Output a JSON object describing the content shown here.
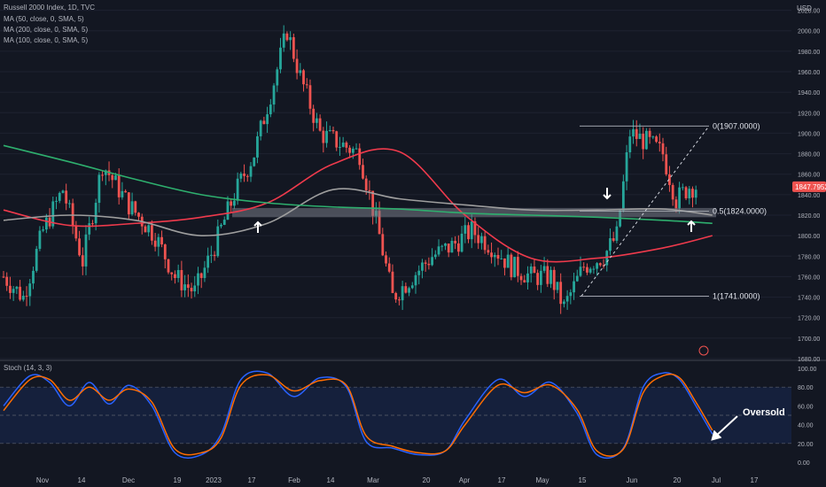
{
  "legend": {
    "title": "Russell 2000 Index, 1D, TVC",
    "ma_lines": [
      "MA (50, close, 0, SMA, 5)",
      "MA (200, close, 0, SMA, 5)",
      "MA (100, close, 0, SMA, 5)"
    ],
    "stoch_title": "Stoch (14, 3, 3)"
  },
  "currency": "USD",
  "price_label": "1847.7952",
  "colors": {
    "background": "#131722",
    "up": "#26a69a",
    "down": "#ef5350",
    "ma50": "#ef3a4c",
    "ma100": "#9e9e9e",
    "ma200": "#2eaf6e",
    "stoch_k": "#2962ff",
    "stoch_d": "#ff6d00",
    "support_band": "#787b86"
  },
  "chart_data": [
    {
      "type": "candlestick",
      "title": "Russell 2000 Index, 1D, TVC",
      "y_unit": "USD",
      "ylim": [
        1680,
        2030
      ],
      "y_ticks": [
        1680,
        1700,
        1720,
        1740,
        1760,
        1780,
        1800,
        1820,
        1840,
        1860,
        1880,
        1900,
        1920,
        1940,
        1960,
        1980,
        2000,
        2020
      ],
      "x_ticks": [
        "Nov",
        "14",
        "Dec",
        "19",
        "2023",
        "17",
        "Feb",
        "14",
        "Mar",
        "20",
        "Apr",
        "17",
        "May",
        "15",
        "Jun",
        "20",
        "Jul",
        "17"
      ],
      "grid": true,
      "fib_levels": [
        {
          "label": "0(1907.0000)",
          "value": 1907
        },
        {
          "label": "0.5(1824.0000)",
          "value": 1824
        },
        {
          "label": "1(1741.0000)",
          "value": 1741
        }
      ],
      "support_zone": [
        1818,
        1827
      ],
      "last_price": 1847.7952,
      "series": [
        {
          "name": "MA (50, close, 0, SMA, 5)",
          "color": "#ef3a4c",
          "x": [
            0,
            20,
            40,
            60,
            80,
            100,
            120,
            140,
            160,
            180,
            200,
            215
          ],
          "values": [
            1825,
            1810,
            1812,
            1818,
            1832,
            1870,
            1882,
            1820,
            1778,
            1778,
            1788,
            1800
          ]
        },
        {
          "name": "MA (100, close, 0, SMA, 5)",
          "color": "#9e9e9e",
          "x": [
            0,
            20,
            40,
            60,
            80,
            100,
            120,
            140,
            160,
            180,
            200,
            215
          ],
          "values": [
            1815,
            1820,
            1815,
            1800,
            1812,
            1845,
            1836,
            1830,
            1825,
            1825,
            1826,
            1820
          ]
        },
        {
          "name": "MA (200, close, 0, SMA, 5)",
          "color": "#2eaf6e",
          "x": [
            0,
            20,
            40,
            60,
            80,
            100,
            120,
            140,
            160,
            180,
            200,
            215
          ],
          "values": [
            1888,
            1872,
            1855,
            1840,
            1832,
            1828,
            1826,
            1822,
            1820,
            1818,
            1815,
            1812
          ]
        }
      ]
    },
    {
      "type": "line",
      "title": "Stoch (14, 3, 3)",
      "ylim": [
        0,
        100
      ],
      "y_ticks": [
        0,
        20,
        40,
        60,
        80,
        100
      ],
      "bands": [
        20,
        80
      ],
      "annotation": "Oversold",
      "series": [
        {
          "color": "#2962ff",
          "x": [
            0,
            8,
            14,
            20,
            26,
            32,
            38,
            45,
            52,
            60,
            66,
            72,
            80,
            88,
            96,
            104,
            110,
            118,
            126,
            134,
            140,
            150,
            158,
            166,
            174,
            180,
            188,
            194,
            200,
            205,
            210,
            215
          ],
          "values": [
            60,
            92,
            85,
            60,
            85,
            62,
            82,
            60,
            10,
            8,
            30,
            88,
            95,
            70,
            90,
            80,
            22,
            15,
            8,
            12,
            45,
            88,
            70,
            85,
            52,
            8,
            15,
            80,
            95,
            88,
            60,
            30
          ]
        },
        {
          "color": "#ff6d00",
          "x": [
            0,
            8,
            14,
            20,
            26,
            32,
            38,
            45,
            52,
            60,
            66,
            72,
            80,
            88,
            96,
            104,
            110,
            118,
            126,
            134,
            140,
            150,
            158,
            166,
            174,
            180,
            188,
            194,
            200,
            205,
            210,
            215
          ],
          "values": [
            55,
            88,
            88,
            66,
            80,
            66,
            78,
            64,
            14,
            10,
            26,
            82,
            93,
            76,
            87,
            82,
            28,
            17,
            10,
            12,
            40,
            82,
            74,
            82,
            56,
            12,
            14,
            74,
            92,
            90,
            64,
            34
          ]
        }
      ]
    }
  ]
}
